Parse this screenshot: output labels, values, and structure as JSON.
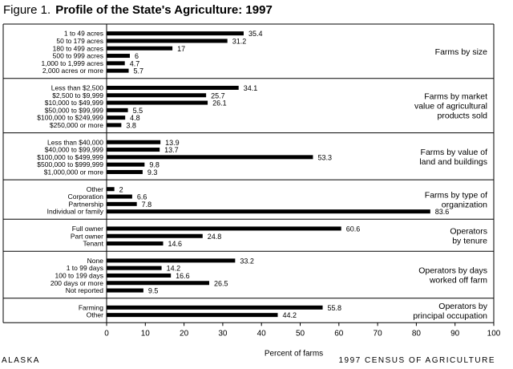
{
  "title": {
    "figure_label": "Figure 1.",
    "text": "Profile of the State's Agriculture: 1997"
  },
  "footer": {
    "left": "ALASKA",
    "right": "1997 CENSUS OF AGRICULTURE"
  },
  "chart_data": {
    "type": "bar",
    "orientation": "horizontal",
    "title": "Profile of the State's Agriculture: 1997",
    "xlabel": "Percent of farms",
    "xlim": [
      0,
      100
    ],
    "xticks": [
      0,
      10,
      20,
      30,
      40,
      50,
      60,
      70,
      80,
      90,
      100
    ],
    "bar_color": "#000000",
    "grid": false,
    "groups": [
      {
        "title": [
          "Farms by size"
        ],
        "categories": [
          "1 to 49 acres",
          "50 to 179 acres",
          "180 to 499 acres",
          "500 to 999 acres",
          "1,000 to 1,999 acres",
          "2,000 acres or more"
        ],
        "values": [
          35.4,
          31.2,
          17,
          6,
          4.7,
          5.7
        ]
      },
      {
        "title": [
          "Farms by market",
          "value of agricultural",
          "products sold"
        ],
        "categories": [
          "Less than $2,500",
          "$2,500 to $9,999",
          "$10,000 to $49,999",
          "$50,000 to $99,999",
          "$100,000 to $249,999",
          "$250,000 or more"
        ],
        "values": [
          34.1,
          25.7,
          26.1,
          5.5,
          4.8,
          3.8
        ]
      },
      {
        "title": [
          "Farms by value of",
          "land and buildings"
        ],
        "categories": [
          "Less than $40,000",
          "$40,000 to $99,999",
          "$100,000 to $499,999",
          "$500,000 to $999,999",
          "$1,000,000 or more"
        ],
        "values": [
          13.9,
          13.7,
          53.3,
          9.8,
          9.3
        ]
      },
      {
        "title": [
          "Farms by type of",
          "organization"
        ],
        "categories": [
          "Other",
          "Corporation",
          "Partnership",
          "Individual or family"
        ],
        "values": [
          2,
          6.6,
          7.8,
          83.6
        ]
      },
      {
        "title": [
          "Operators",
          "by tenure"
        ],
        "categories": [
          "Full owner",
          "Part owner",
          "Tenant"
        ],
        "values": [
          60.6,
          24.8,
          14.6
        ]
      },
      {
        "title": [
          "Operators by days",
          "worked off farm"
        ],
        "categories": [
          "None",
          "1 to 99 days",
          "100 to 199 days",
          "200 days or more",
          "Not reported"
        ],
        "values": [
          33.2,
          14.2,
          16.6,
          26.5,
          9.5
        ]
      },
      {
        "title": [
          "Operators by",
          "principal occupation"
        ],
        "categories": [
          "Farming",
          "Other"
        ],
        "values": [
          55.8,
          44.2
        ]
      }
    ]
  }
}
